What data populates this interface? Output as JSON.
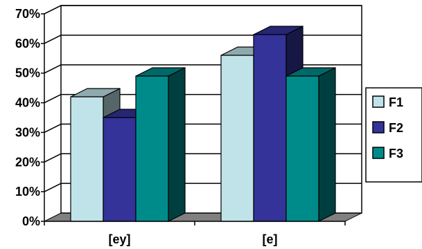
{
  "chart_data": {
    "type": "bar",
    "title": "",
    "xlabel": "",
    "ylabel": "",
    "categories": [
      "[ey]",
      "[e]"
    ],
    "series": [
      {
        "name": "F1",
        "values": [
          0.42,
          0.56
        ],
        "color": "#BFE3E8"
      },
      {
        "name": "F2",
        "values": [
          0.35,
          0.63
        ],
        "color": "#333399"
      },
      {
        "name": "F3",
        "values": [
          0.49,
          0.49
        ],
        "color": "#008B8B"
      }
    ],
    "ylim": [
      0,
      0.7
    ],
    "y_ticks": [
      "0%",
      "10%",
      "20%",
      "30%",
      "40%",
      "50%",
      "60%",
      "70%"
    ],
    "grid": true,
    "legend": "right",
    "three_d": true
  }
}
